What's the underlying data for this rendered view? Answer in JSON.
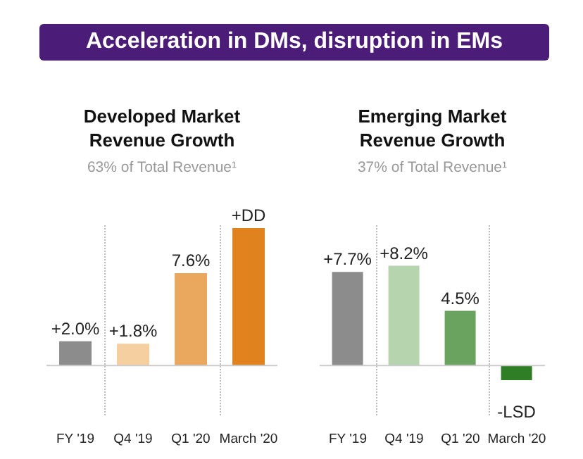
{
  "chart_data": [
    {
      "type": "bar",
      "title": "Developed Market Revenue Growth",
      "subtitle": "63% of Total Revenue¹",
      "annotations": [
        "Acceleration in DMs, disruption in EMs"
      ],
      "categories": [
        "FY '19",
        "Q4 '19",
        "Q1 '20",
        "March '20"
      ],
      "values": [
        2.0,
        1.8,
        7.6,
        11.3
      ],
      "value_labels": [
        "+2.0%",
        "+1.8%",
        "7.6%",
        "+DD"
      ],
      "colors": [
        "#8c8c8c",
        "#f5cfa0",
        "#eaa85e",
        "#e0821d"
      ],
      "tick_labels": "x"
    },
    {
      "type": "bar",
      "title": "Emerging Market Revenue Growth",
      "subtitle": "37% of Total Revenue¹",
      "categories": [
        "FY '19",
        "Q4 '19",
        "Q1 '20",
        "March '20"
      ],
      "values": [
        7.7,
        8.2,
        4.5,
        -1.2
      ],
      "value_labels": [
        "+7.7%",
        "+8.2%",
        "4.5%",
        "-LSD"
      ],
      "colors": [
        "#8c8c8c",
        "#b6d4ae",
        "#6aa35f",
        "#2f7d25"
      ],
      "tick_labels": "x"
    }
  ]
}
